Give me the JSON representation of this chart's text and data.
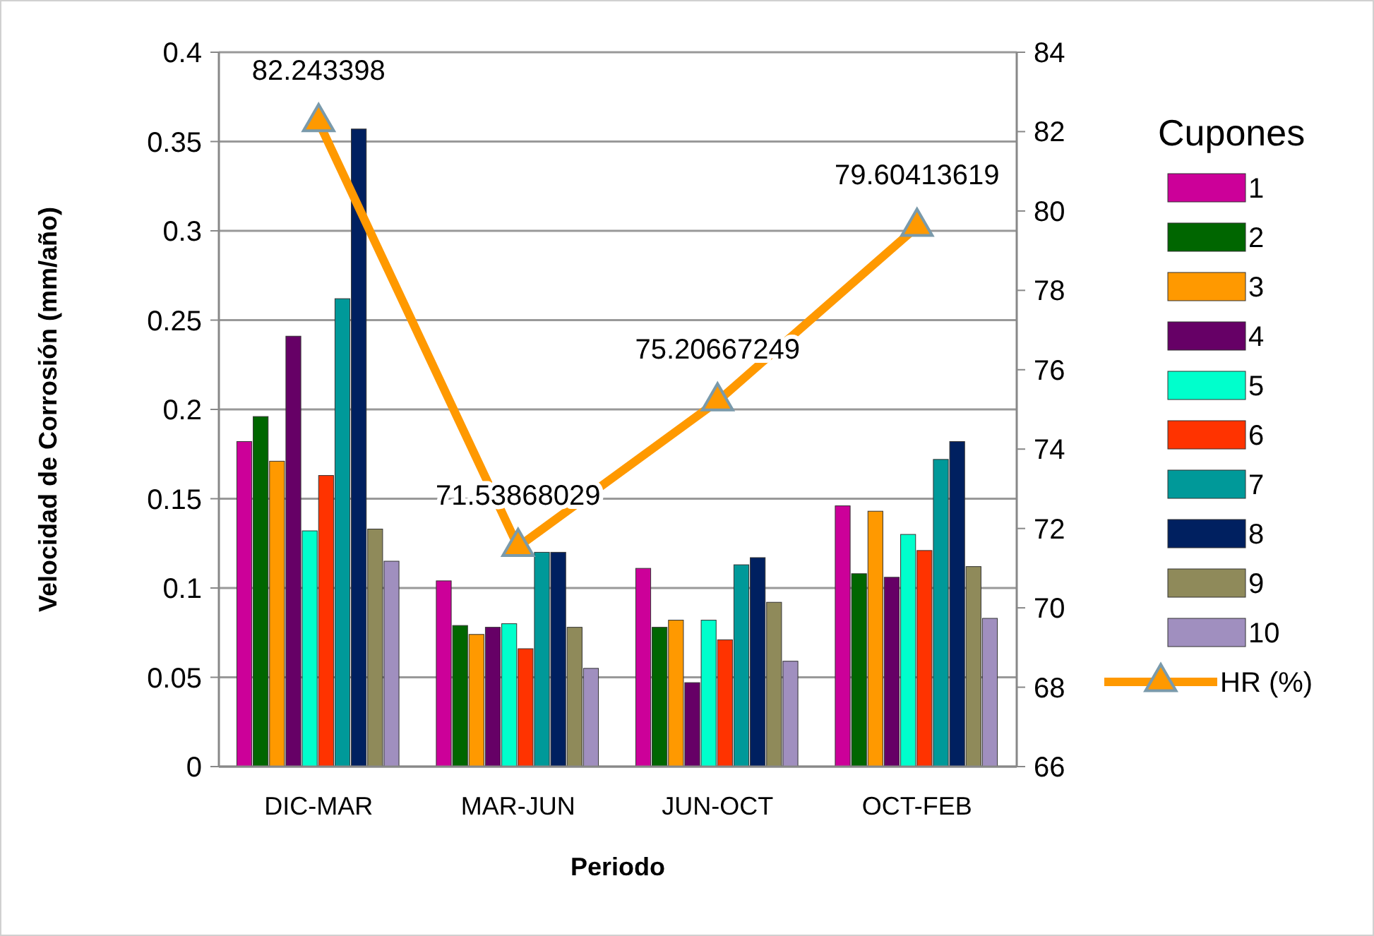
{
  "chart_data": {
    "type": "bar",
    "xlabel": "Periodo",
    "ylabel": "Velocidad de Corrosión (mm/año)",
    "legend_title": "Cupones",
    "categories": [
      "DIC-MAR",
      "MAR-JUN",
      "JUN-OCT",
      "OCT-FEB"
    ],
    "ylim": [
      0,
      0.4
    ],
    "yticks": [
      0,
      0.05,
      0.1,
      0.15,
      0.2,
      0.25,
      0.3,
      0.35,
      0.4
    ],
    "y2lim": [
      66,
      84
    ],
    "y2ticks": [
      66,
      68,
      70,
      72,
      74,
      76,
      78,
      80,
      82,
      84
    ],
    "grid": "y",
    "legend": "right",
    "series": [
      {
        "name": "1",
        "color": "#cc0099",
        "values": [
          0.182,
          0.104,
          0.111,
          0.146
        ]
      },
      {
        "name": "2",
        "color": "#006600",
        "values": [
          0.196,
          0.079,
          0.078,
          0.108
        ]
      },
      {
        "name": "3",
        "color": "#ff9900",
        "values": [
          0.171,
          0.074,
          0.082,
          0.143
        ]
      },
      {
        "name": "4",
        "color": "#660066",
        "values": [
          0.241,
          0.078,
          0.047,
          0.106
        ]
      },
      {
        "name": "5",
        "color": "#00ffcc",
        "values": [
          0.132,
          0.08,
          0.082,
          0.13
        ]
      },
      {
        "name": "6",
        "color": "#ff3300",
        "values": [
          0.163,
          0.066,
          0.071,
          0.121
        ]
      },
      {
        "name": "7",
        "color": "#009999",
        "values": [
          0.262,
          0.12,
          0.113,
          0.172
        ]
      },
      {
        "name": "8",
        "color": "#002060",
        "values": [
          0.357,
          0.12,
          0.117,
          0.182
        ]
      },
      {
        "name": "9",
        "color": "#8f8a5a",
        "values": [
          0.133,
          0.078,
          0.092,
          0.112
        ]
      },
      {
        "name": "10",
        "color": "#a08fbf",
        "values": [
          0.115,
          0.055,
          0.059,
          0.083
        ]
      },
      {
        "name": "HR (%)",
        "type": "line",
        "axis": "y2",
        "color": "#ff9900",
        "marker": "triangle",
        "values": [
          82.243398,
          71.53868029,
          75.20667249,
          79.60413619
        ],
        "value_labels": [
          "82.243398",
          "71.53868029",
          "75.20667249",
          "79.60413619"
        ]
      }
    ]
  }
}
